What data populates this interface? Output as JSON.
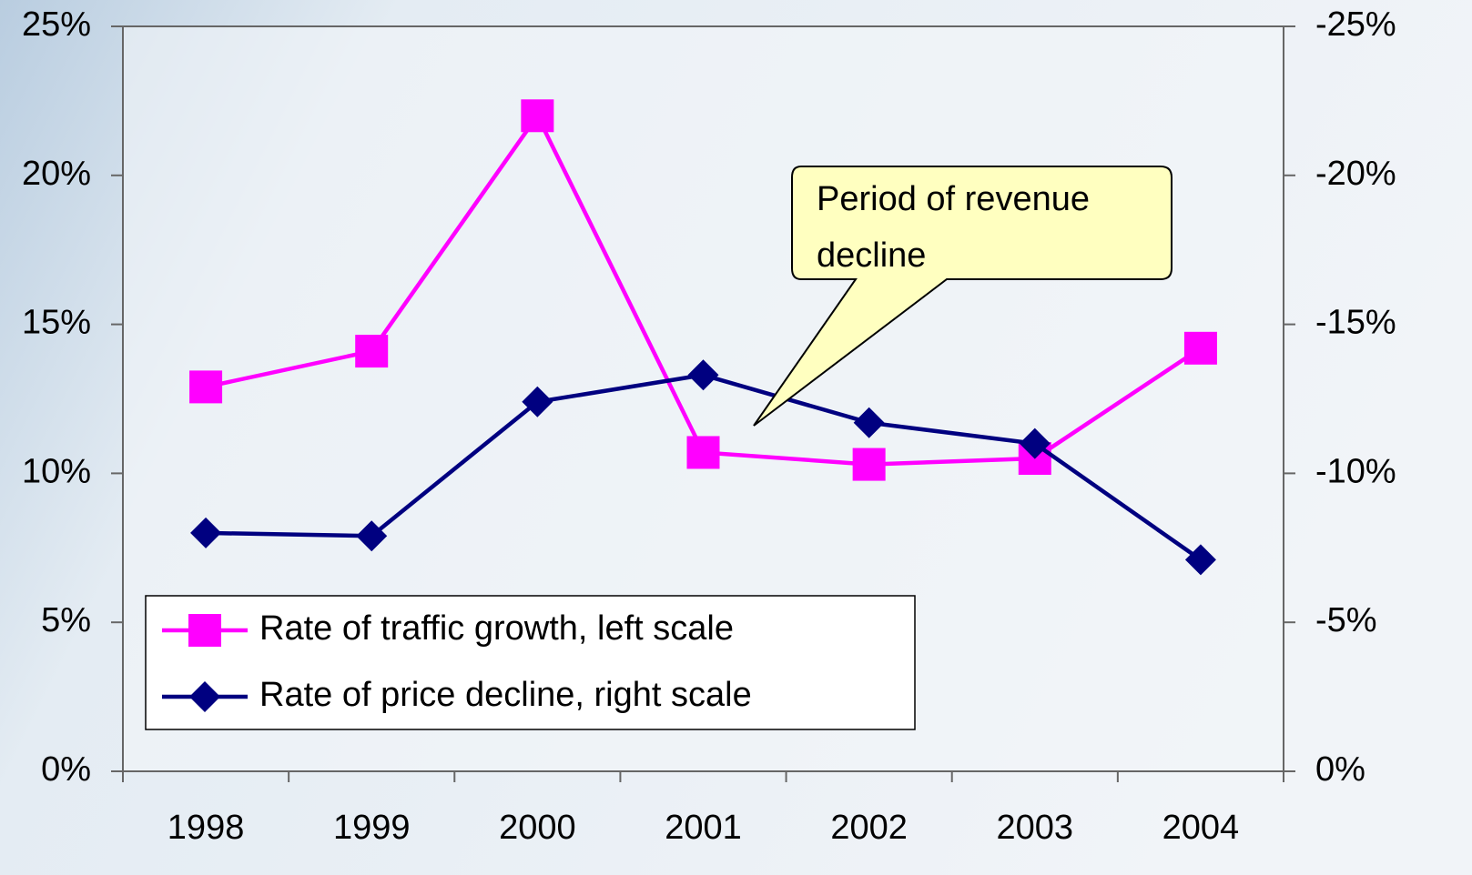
{
  "chart_data": {
    "type": "line",
    "categories": [
      "1998",
      "1999",
      "2000",
      "2001",
      "2002",
      "2003",
      "2004"
    ],
    "series": [
      {
        "name": "Rate of traffic growth, left scale",
        "color": "#ff00ff",
        "marker": "square",
        "values": [
          12.9,
          14.1,
          22.0,
          10.7,
          10.3,
          10.5,
          14.2
        ]
      },
      {
        "name": "Rate of price decline, right scale",
        "color": "#000080",
        "marker": "diamond",
        "axis": "y2",
        "values": [
          -8.0,
          -7.9,
          -12.4,
          -13.3,
          -11.7,
          -11.0,
          -7.1
        ]
      }
    ],
    "ylim": [
      0,
      25
    ],
    "yticks": [
      {
        "value": 0,
        "label": "0%"
      },
      {
        "value": 5,
        "label": "5%"
      },
      {
        "value": 10,
        "label": "10%"
      },
      {
        "value": 15,
        "label": "15%"
      },
      {
        "value": 20,
        "label": "20%"
      },
      {
        "value": 25,
        "label": "25%"
      }
    ],
    "y2lim": [
      0,
      -25
    ],
    "y2ticks": [
      {
        "value": 0,
        "label": "0%"
      },
      {
        "value": -5,
        "label": "-5%"
      },
      {
        "value": -10,
        "label": "-10%"
      },
      {
        "value": -15,
        "label": "-15%"
      },
      {
        "value": -20,
        "label": "-20%"
      },
      {
        "value": -25,
        "label": "-25%"
      }
    ],
    "annotation": "Period of revenue decline",
    "legend": "lower left"
  }
}
